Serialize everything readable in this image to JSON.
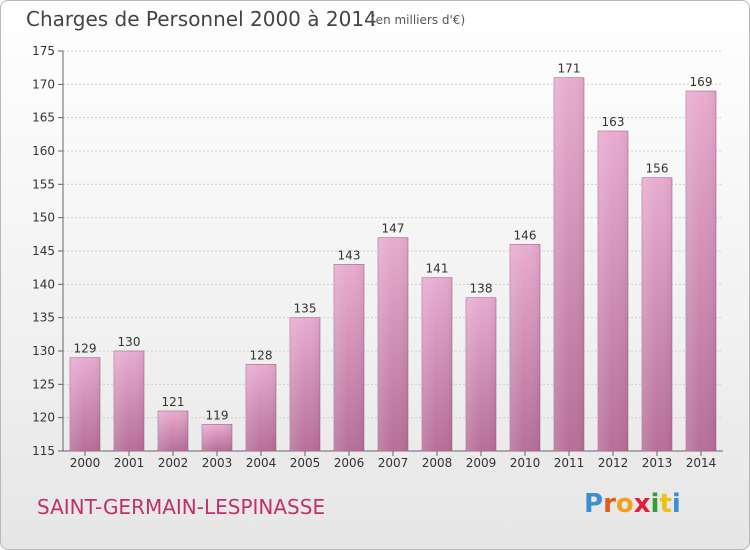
{
  "header": {
    "title": "Charges de Personnel 2000 à 2014",
    "subtitle": "(en milliers d'€)"
  },
  "footer": {
    "location": "SAINT-GERMAIN-LESPINASSE",
    "logo": "Proxiti"
  },
  "colors": {
    "bar_top": "#e8acd0",
    "bar_bottom": "#b66f98",
    "title": "#444444",
    "location": "#c0306e",
    "logo_letters": [
      "#3a8fd0",
      "#e85a1c",
      "#f0a020",
      "#e0203a",
      "#30a030",
      "#f0c010",
      "#3a8fd0"
    ]
  },
  "chart_data": {
    "type": "bar",
    "title": "Charges de Personnel 2000 à 2014",
    "subtitle": "(en milliers d'€)",
    "categories": [
      "2000",
      "2001",
      "2002",
      "2003",
      "2004",
      "2005",
      "2006",
      "2007",
      "2008",
      "2009",
      "2010",
      "2011",
      "2012",
      "2013",
      "2014"
    ],
    "values": [
      129,
      130,
      121,
      119,
      128,
      135,
      143,
      147,
      141,
      138,
      146,
      171,
      163,
      156,
      169
    ],
    "ylim": [
      115,
      175
    ],
    "yticks": [
      115,
      120,
      125,
      130,
      135,
      140,
      145,
      150,
      155,
      160,
      165,
      170,
      175
    ],
    "grid": true,
    "data_labels": true
  }
}
